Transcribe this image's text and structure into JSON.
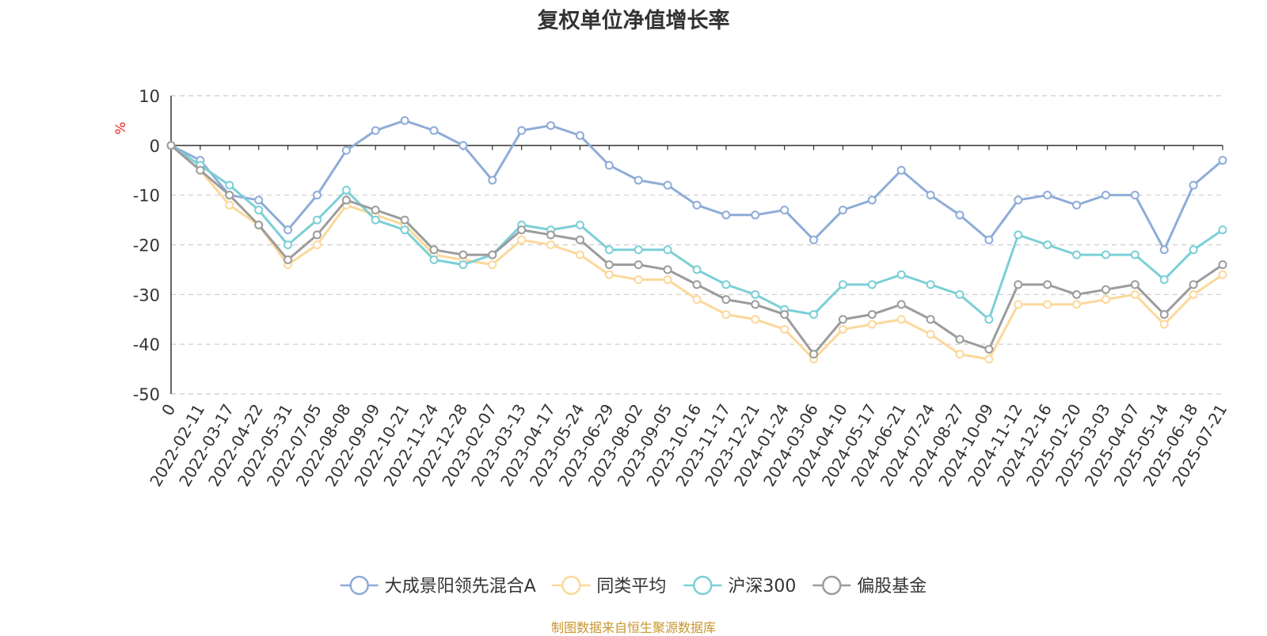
{
  "chart_data": {
    "type": "line",
    "title": "复权单位净值增长率",
    "ylabel": "%",
    "ylim": [
      -50,
      10
    ],
    "yticks": [
      10,
      0,
      -10,
      -20,
      -30,
      -40,
      -50
    ],
    "grid": true,
    "legend_position": "bottom",
    "x_tick_labels": [
      "0",
      "2022-02-11",
      "2022-03-17",
      "2022-04-22",
      "2022-05-31",
      "2022-07-05",
      "2022-08-08",
      "2022-09-09",
      "2022-10-21",
      "2022-11-24",
      "2022-12-28",
      "2023-02-07",
      "2023-03-13",
      "2023-04-17",
      "2023-05-24",
      "2023-06-29",
      "2023-08-02",
      "2023-09-05",
      "2023-10-16",
      "2023-11-17",
      "2023-12-21",
      "2024-01-24",
      "2024-03-06",
      "2024-04-10",
      "2024-05-17",
      "2024-06-21",
      "2024-07-24",
      "2024-08-27",
      "2024-10-09",
      "2024-11-12",
      "2024-12-16",
      "2025-01-20",
      "2025-03-03",
      "2025-04-07",
      "2025-05-14",
      "2025-06-18",
      "2025-07-21"
    ],
    "series": [
      {
        "name": "大成景阳领先混合A",
        "color": "#8eacd8",
        "values": [
          0,
          -3,
          -10,
          -11,
          -17,
          -10,
          -1,
          3,
          5,
          3,
          0,
          -7,
          3,
          4,
          2,
          -4,
          -7,
          -8,
          -12,
          -14,
          -14,
          -13,
          -19,
          -13,
          -11,
          -5,
          -10,
          -14,
          -19,
          -11,
          -10,
          -12,
          -10,
          -10,
          -21,
          -8,
          -3
        ]
      },
      {
        "name": "同类平均",
        "color": "#fcd89a",
        "values": [
          0,
          -5,
          -12,
          -16,
          -24,
          -20,
          -12,
          -14,
          -16,
          -22,
          -23,
          -24,
          -19,
          -20,
          -22,
          -26,
          -27,
          -27,
          -31,
          -34,
          -35,
          -37,
          -43,
          -37,
          -36,
          -35,
          -38,
          -42,
          -43,
          -32,
          -32,
          -32,
          -31,
          -30,
          -36,
          -30,
          -26
        ]
      },
      {
        "name": "沪深300",
        "color": "#7ccfd6",
        "values": [
          0,
          -4,
          -8,
          -13,
          -20,
          -15,
          -9,
          -15,
          -17,
          -23,
          -24,
          -22,
          -16,
          -17,
          -16,
          -21,
          -21,
          -21,
          -25,
          -28,
          -30,
          -33,
          -34,
          -28,
          -28,
          -26,
          -28,
          -30,
          -35,
          -18,
          -20,
          -22,
          -22,
          -22,
          -27,
          -21,
          -17
        ]
      },
      {
        "name": "偏股基金",
        "color": "#9c9c9c",
        "values": [
          0,
          -5,
          -10,
          -16,
          -23,
          -18,
          -11,
          -13,
          -15,
          -21,
          -22,
          -22,
          -17,
          -18,
          -19,
          -24,
          -24,
          -25,
          -28,
          -31,
          -32,
          -34,
          -42,
          -35,
          -34,
          -32,
          -35,
          -39,
          -41,
          -28,
          -28,
          -30,
          -29,
          -28,
          -34,
          -28,
          -24
        ]
      }
    ]
  },
  "footer": {
    "source": "制图数据来自恒生聚源数据库"
  }
}
